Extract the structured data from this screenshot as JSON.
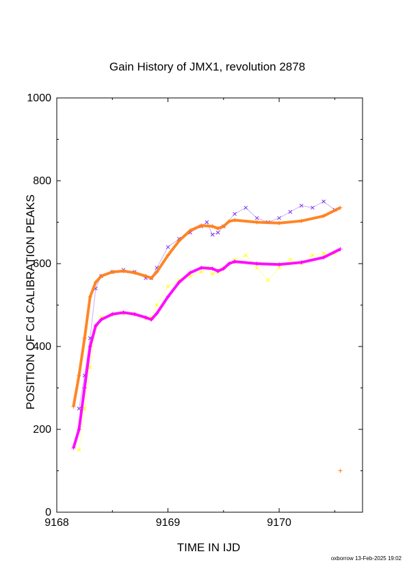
{
  "chart_data": {
    "type": "scatter",
    "title": "Gain History of JMX1, revolution 2878",
    "xlabel": "TIME IN IJD",
    "ylabel": "POSITION OF Cd CALIBRATION PEAKS",
    "footer": "oxborrow 13-Feb-2025 19:02",
    "xlim": [
      9168.0,
      9170.75
    ],
    "ylim": [
      0,
      1000
    ],
    "xticks": [
      "9168",
      "9169",
      "9170"
    ],
    "xtick_values": [
      9168,
      9169,
      9170
    ],
    "yticks": [
      "0",
      "200",
      "400",
      "600",
      "800",
      "1000"
    ],
    "ytick_values": [
      0,
      200,
      400,
      600,
      800,
      1000
    ],
    "grid": false,
    "series": [
      {
        "color": "#7b2ff0",
        "marker": "x",
        "x": [
          9168.2,
          9168.25,
          9168.3,
          9168.35,
          9168.4,
          9168.5,
          9168.6,
          9168.7,
          9168.8,
          9168.85,
          9168.9,
          9169.0,
          9169.1,
          9169.2,
          9169.3,
          9169.35,
          9169.4,
          9169.45,
          9169.5,
          9169.6,
          9169.7,
          9169.8,
          9169.9,
          9170.0,
          9170.1,
          9170.2,
          9170.3,
          9170.4,
          9170.5
        ],
        "y": [
          250,
          330,
          420,
          540,
          570,
          580,
          585,
          580,
          565,
          565,
          590,
          640,
          660,
          675,
          690,
          700,
          670,
          675,
          690,
          720,
          735,
          710,
          700,
          710,
          725,
          740,
          735,
          750,
          730
        ]
      },
      {
        "color": "#ffff00",
        "marker": "x",
        "x": [
          9168.2,
          9168.25,
          9168.3,
          9168.35,
          9168.4,
          9168.5,
          9168.6,
          9168.7,
          9168.8,
          9168.85,
          9168.9,
          9169.0,
          9169.1,
          9169.2,
          9169.3,
          9169.35,
          9169.4,
          9169.45,
          9169.5,
          9169.6,
          9169.7,
          9169.8,
          9169.9,
          9170.0,
          9170.1,
          9170.2,
          9170.3,
          9170.4,
          9170.5
        ],
        "y": [
          150,
          250,
          350,
          450,
          470,
          478,
          480,
          478,
          468,
          470,
          500,
          545,
          560,
          570,
          580,
          590,
          575,
          580,
          590,
          610,
          620,
          590,
          560,
          590,
          610,
          600,
          620,
          625,
          625
        ]
      },
      {
        "color": "#ff00ff",
        "marker": "+",
        "x": [
          9168.15,
          9168.2,
          9168.25,
          9168.3,
          9168.35,
          9168.4,
          9168.5,
          9168.6,
          9168.7,
          9168.8,
          9168.85,
          9168.9,
          9169.0,
          9169.1,
          9169.2,
          9169.3,
          9169.4,
          9169.45,
          9169.5,
          9169.55,
          9169.6,
          9169.8,
          9170.0,
          9170.2,
          9170.4,
          9170.55
        ],
        "y": [
          155,
          200,
          300,
          400,
          450,
          465,
          478,
          482,
          478,
          470,
          465,
          480,
          520,
          555,
          578,
          590,
          588,
          582,
          588,
          600,
          605,
          600,
          598,
          603,
          615,
          635
        ]
      },
      {
        "color": "#ff7f1a",
        "marker": "+",
        "x": [
          9168.15,
          9168.2,
          9168.25,
          9168.3,
          9168.35,
          9168.4,
          9168.5,
          9168.6,
          9168.7,
          9168.8,
          9168.85,
          9168.9,
          9169.0,
          9169.1,
          9169.2,
          9169.3,
          9169.4,
          9169.45,
          9169.5,
          9169.55,
          9169.6,
          9169.8,
          9170.0,
          9170.2,
          9170.4,
          9170.55
        ],
        "y": [
          255,
          330,
          420,
          520,
          555,
          570,
          580,
          582,
          578,
          570,
          565,
          580,
          620,
          655,
          680,
          692,
          690,
          685,
          690,
          702,
          705,
          700,
          698,
          703,
          715,
          735
        ]
      },
      {
        "color": "#ff7f1a",
        "marker": "+",
        "x": [
          9170.55
        ],
        "y": [
          100
        ]
      }
    ]
  }
}
